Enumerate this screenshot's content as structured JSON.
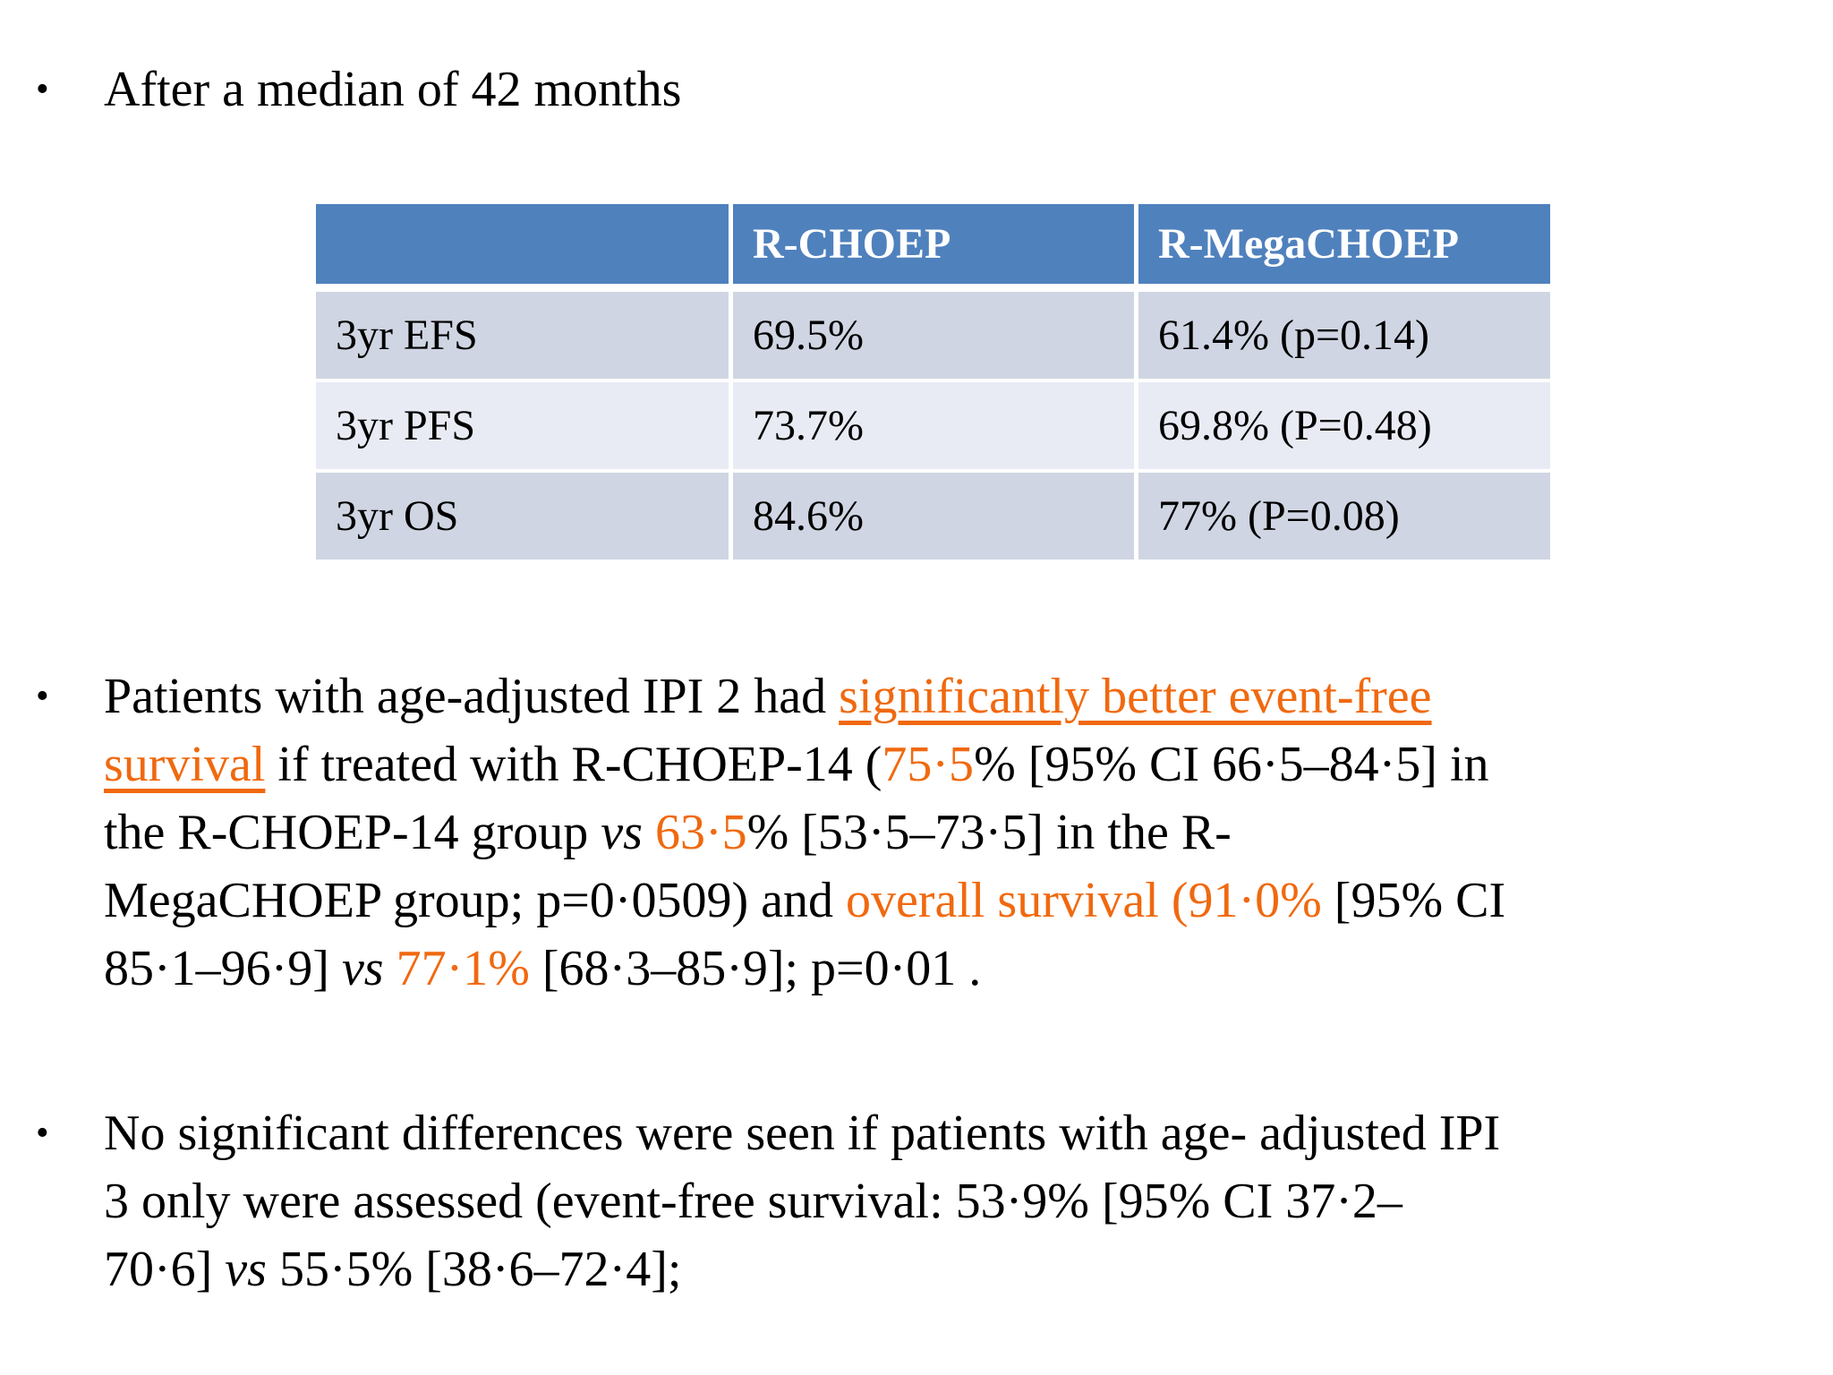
{
  "slide": {
    "bullet_char": "•",
    "colors": {
      "header_bg": "#4f81bd",
      "header_text": "#ffffff",
      "row_odd": "#cfd5e2",
      "row_even": "#e9ebf4",
      "orange": "#f0690f",
      "text": "#000000"
    },
    "bullet1": {
      "text": "After a median of 42 months"
    },
    "table": {
      "headers": [
        "",
        "R-CHOEP",
        "R-MegaCHOEP"
      ],
      "rows": [
        [
          "3yr EFS",
          "69.5%",
          "61.4% (p=0.14)"
        ],
        [
          "3yr PFS",
          "73.7%",
          "69.8% (P=0.48)"
        ],
        [
          "3yr OS",
          "84.6%",
          "77% (P=0.08)"
        ]
      ]
    },
    "bullet2": {
      "runs": [
        {
          "text": "Patients with age-adjusted IPI 2 had ",
          "style": "normal"
        },
        {
          "text": "significantly better event-free\nsurvival",
          "style": "orange-underline"
        },
        {
          "text": " if treated with R-CHOEP-14 (",
          "style": "normal"
        },
        {
          "text": "75·5",
          "style": "orange"
        },
        {
          "text": "% [95% CI 66·5–84·5] in\nthe R-CHOEP-14 group ",
          "style": "normal"
        },
        {
          "text": "vs",
          "style": "italic"
        },
        {
          "text": " ",
          "style": "normal"
        },
        {
          "text": "63·5",
          "style": "orange"
        },
        {
          "text": "% [53·5–73·5] in the R-\nMegaCHOEP group; p=0·0509) and ",
          "style": "normal"
        },
        {
          "text": "overall survival (91·0%",
          "style": "orange"
        },
        {
          "text": " [95% CI\n85·1–96·9] ",
          "style": "normal"
        },
        {
          "text": "vs",
          "style": "italic"
        },
        {
          "text": " ",
          "style": "normal"
        },
        {
          "text": "77·1%",
          "style": "orange"
        },
        {
          "text": " [68·3–85·9]; p=0·01 .",
          "style": "normal"
        }
      ]
    },
    "bullet3": {
      "runs": [
        {
          "text": "No significant differences were seen if patients with age- adjusted IPI\n3 only were assessed (event-free survival: 53·9% [95% CI 37·2–\n70·6] ",
          "style": "normal"
        },
        {
          "text": "vs",
          "style": "italic"
        },
        {
          "text": " 55·5% [38·6–72·4];",
          "style": "normal"
        }
      ]
    }
  }
}
